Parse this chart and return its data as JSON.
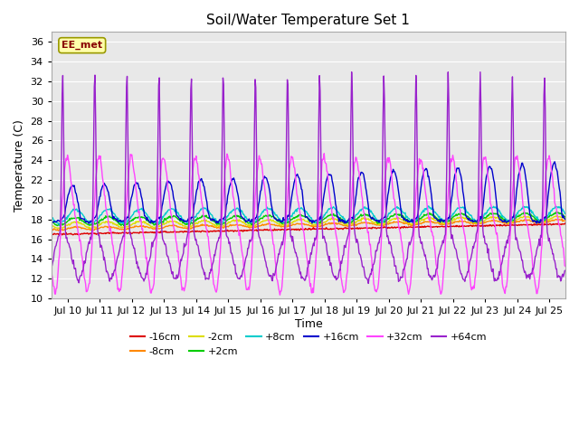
{
  "title": "Soil/Water Temperature Set 1",
  "xlabel": "Time",
  "ylabel": "Temperature (C)",
  "annotation": "EE_met",
  "ylim": [
    10,
    37
  ],
  "yticks": [
    10,
    12,
    14,
    16,
    18,
    20,
    22,
    24,
    26,
    28,
    30,
    32,
    34,
    36
  ],
  "xlim": [
    9.5,
    25.5
  ],
  "xtick_days": [
    10,
    11,
    12,
    13,
    14,
    15,
    16,
    17,
    18,
    19,
    20,
    21,
    22,
    23,
    24,
    25
  ],
  "colors": {
    "-16cm": "#dd0000",
    "-8cm": "#ff8800",
    "-2cm": "#dddd00",
    "+2cm": "#00cc00",
    "+8cm": "#00cccc",
    "+16cm": "#0000cc",
    "+32cm": "#ff44ff",
    "+64cm": "#9922cc"
  },
  "fig_bg": "#ffffff",
  "plot_bg": "#e8e8e8",
  "grid_color": "#ffffff",
  "annotation_fg": "#880000",
  "annotation_bg": "#ffffaa",
  "annotation_edge": "#999900"
}
